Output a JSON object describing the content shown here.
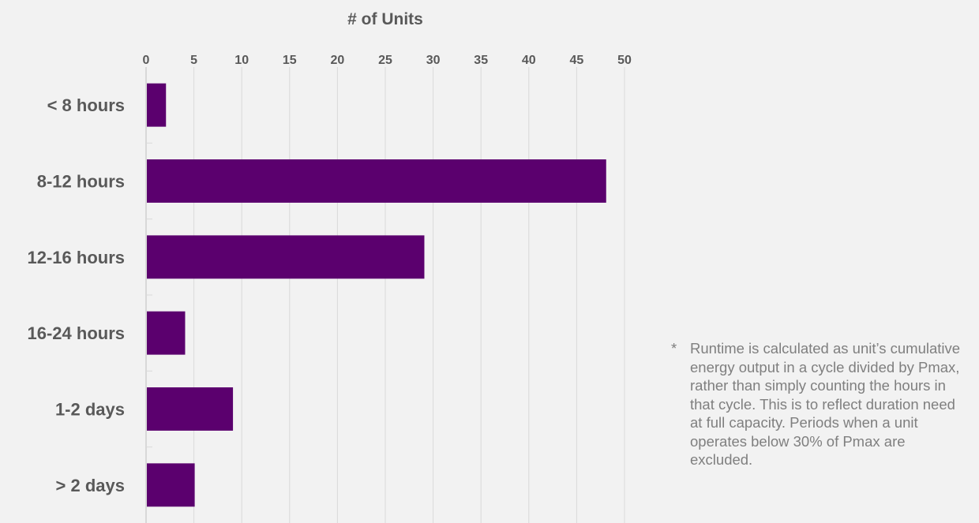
{
  "chart_data": {
    "type": "bar",
    "orientation": "horizontal",
    "title": "",
    "xlabel": "# of Units",
    "ylabel": "",
    "categories": [
      "< 8 hours",
      "8-12 hours",
      "12-16 hours",
      "16-24 hours",
      "1-2 days",
      "> 2 days"
    ],
    "values": [
      2,
      48,
      29,
      4,
      9,
      5
    ],
    "xlim": [
      0,
      50
    ],
    "x_ticks": [
      0,
      5,
      10,
      15,
      20,
      25,
      30,
      35,
      40,
      45,
      50
    ],
    "x_axis_position": "top",
    "grid": true,
    "bar_color": "#5b006e"
  },
  "footnote": {
    "marker": "*",
    "text": "Runtime is calculated as unit’s cumulative energy output in a cycle divided by Pmax, rather than simply counting the hours in that cycle. This is to reflect duration need at full capacity. Periods when a unit operates below 30% of Pmax are excluded."
  }
}
